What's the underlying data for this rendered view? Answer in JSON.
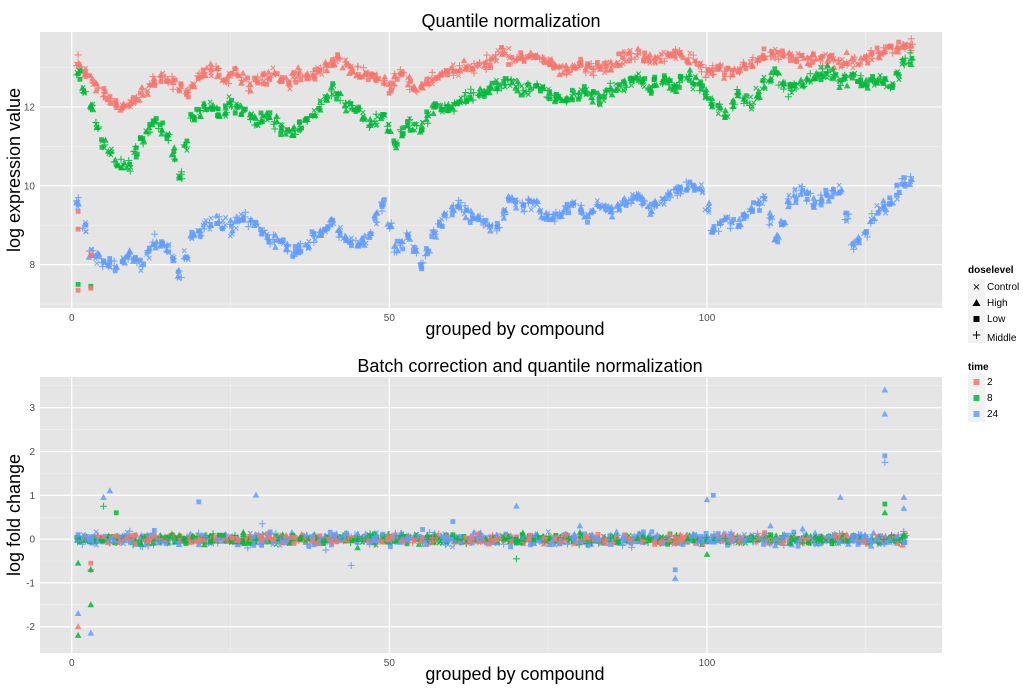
{
  "chart_data": [
    {
      "type": "scatter",
      "title": "Quantile normalization",
      "xlabel": "grouped by compound",
      "ylabel": "log expression value",
      "xlim": [
        -5,
        137
      ],
      "ylim": [
        6.9,
        13.9
      ],
      "xticks": [
        0,
        50,
        100
      ],
      "yticks": [
        8,
        10,
        12
      ],
      "grid": true,
      "series": [
        {
          "name": "2",
          "color": "#F8766D",
          "levels": [
            [
              1,
              13.1
            ],
            [
              3,
              12.65
            ],
            [
              6,
              12.2
            ],
            [
              8,
              12.0
            ],
            [
              10,
              12.2
            ],
            [
              12,
              12.55
            ],
            [
              14,
              12.75
            ],
            [
              16,
              12.6
            ],
            [
              18,
              12.3
            ],
            [
              20,
              12.75
            ],
            [
              22,
              12.95
            ],
            [
              24,
              12.7
            ],
            [
              26,
              12.85
            ],
            [
              28,
              12.55
            ],
            [
              30,
              12.75
            ],
            [
              32,
              12.8
            ],
            [
              34,
              12.6
            ],
            [
              36,
              12.85
            ],
            [
              38,
              12.75
            ],
            [
              40,
              13.05
            ],
            [
              42,
              13.25
            ],
            [
              44,
              12.95
            ],
            [
              46,
              12.85
            ],
            [
              48,
              12.75
            ],
            [
              50,
              12.55
            ],
            [
              52,
              12.85
            ],
            [
              54,
              12.45
            ],
            [
              56,
              12.7
            ],
            [
              58,
              12.8
            ],
            [
              60,
              12.95
            ],
            [
              62,
              12.95
            ],
            [
              64,
              13.05
            ],
            [
              66,
              13.15
            ],
            [
              68,
              13.4
            ],
            [
              70,
              13.2
            ],
            [
              72,
              13.3
            ],
            [
              74,
              13.2
            ],
            [
              76,
              13.05
            ],
            [
              78,
              12.95
            ],
            [
              80,
              13.05
            ],
            [
              82,
              12.95
            ],
            [
              84,
              13.05
            ],
            [
              86,
              13.15
            ],
            [
              88,
              13.35
            ],
            [
              90,
              13.25
            ],
            [
              92,
              13.2
            ],
            [
              94,
              13.35
            ],
            [
              96,
              13.3
            ],
            [
              98,
              13.2
            ],
            [
              100,
              12.9
            ],
            [
              102,
              13.0
            ],
            [
              104,
              12.85
            ],
            [
              106,
              13.05
            ],
            [
              108,
              13.2
            ],
            [
              110,
              13.3
            ],
            [
              112,
              13.35
            ],
            [
              114,
              13.2
            ],
            [
              116,
              13.15
            ],
            [
              118,
              13.2
            ],
            [
              120,
              13.2
            ],
            [
              122,
              13.15
            ],
            [
              124,
              13.1
            ],
            [
              126,
              13.25
            ],
            [
              128,
              13.45
            ],
            [
              131,
              13.55
            ]
          ]
        },
        {
          "name": "8",
          "color": "#00BA38",
          "levels": [
            [
              1,
              12.9
            ],
            [
              3,
              12.0
            ],
            [
              5,
              11.1
            ],
            [
              7,
              10.6
            ],
            [
              9,
              10.5
            ],
            [
              11,
              11.2
            ],
            [
              13,
              11.65
            ],
            [
              15,
              11.3
            ],
            [
              17,
              10.3
            ],
            [
              19,
              11.7
            ],
            [
              21,
              12.05
            ],
            [
              23,
              11.85
            ],
            [
              25,
              12.1
            ],
            [
              27,
              11.9
            ],
            [
              29,
              11.6
            ],
            [
              31,
              11.75
            ],
            [
              33,
              11.5
            ],
            [
              35,
              11.3
            ],
            [
              37,
              11.7
            ],
            [
              39,
              12.0
            ],
            [
              41,
              12.45
            ],
            [
              43,
              12.05
            ],
            [
              45,
              11.95
            ],
            [
              47,
              11.55
            ],
            [
              49,
              11.8
            ],
            [
              51,
              11.1
            ],
            [
              53,
              11.6
            ],
            [
              55,
              11.5
            ],
            [
              57,
              11.95
            ],
            [
              59,
              12.0
            ],
            [
              61,
              12.15
            ],
            [
              63,
              12.25
            ],
            [
              65,
              12.4
            ],
            [
              67,
              12.6
            ],
            [
              69,
              12.65
            ],
            [
              71,
              12.4
            ],
            [
              73,
              12.55
            ],
            [
              75,
              12.35
            ],
            [
              77,
              12.15
            ],
            [
              79,
              12.25
            ],
            [
              81,
              12.4
            ],
            [
              83,
              12.2
            ],
            [
              85,
              12.45
            ],
            [
              87,
              12.55
            ],
            [
              89,
              12.75
            ],
            [
              91,
              12.5
            ],
            [
              93,
              12.65
            ],
            [
              95,
              12.55
            ],
            [
              97,
              12.75
            ],
            [
              99,
              12.5
            ],
            [
              101,
              12.1
            ],
            [
              103,
              11.8
            ],
            [
              105,
              12.3
            ],
            [
              107,
              12.1
            ],
            [
              109,
              12.55
            ],
            [
              111,
              12.8
            ],
            [
              113,
              12.45
            ],
            [
              115,
              12.6
            ],
            [
              117,
              12.8
            ],
            [
              119,
              12.85
            ],
            [
              121,
              12.65
            ],
            [
              123,
              12.75
            ],
            [
              125,
              12.55
            ],
            [
              127,
              12.75
            ],
            [
              129,
              12.5
            ],
            [
              131,
              13.15
            ]
          ]
        },
        {
          "name": "24",
          "color": "#619CFF",
          "levels": [
            [
              1,
              9.6
            ],
            [
              3,
              8.3
            ],
            [
              5,
              8.05
            ],
            [
              7,
              8.0
            ],
            [
              9,
              8.2
            ],
            [
              11,
              8.0
            ],
            [
              13,
              8.6
            ],
            [
              15,
              8.4
            ],
            [
              17,
              7.75
            ],
            [
              19,
              8.7
            ],
            [
              21,
              9.0
            ],
            [
              23,
              9.1
            ],
            [
              25,
              8.9
            ],
            [
              27,
              9.2
            ],
            [
              29,
              9.0
            ],
            [
              31,
              8.7
            ],
            [
              33,
              8.6
            ],
            [
              35,
              8.35
            ],
            [
              37,
              8.55
            ],
            [
              39,
              8.8
            ],
            [
              41,
              9.05
            ],
            [
              43,
              8.7
            ],
            [
              45,
              8.5
            ],
            [
              47,
              8.8
            ],
            [
              49,
              9.5
            ],
            [
              51,
              8.45
            ],
            [
              53,
              8.7
            ],
            [
              55,
              8.0
            ],
            [
              57,
              8.75
            ],
            [
              59,
              9.3
            ],
            [
              61,
              9.5
            ],
            [
              63,
              9.2
            ],
            [
              65,
              9.1
            ],
            [
              67,
              8.95
            ],
            [
              69,
              9.6
            ],
            [
              71,
              9.5
            ],
            [
              73,
              9.55
            ],
            [
              75,
              9.2
            ],
            [
              77,
              9.3
            ],
            [
              79,
              9.6
            ],
            [
              81,
              9.2
            ],
            [
              83,
              9.5
            ],
            [
              85,
              9.4
            ],
            [
              87,
              9.6
            ],
            [
              89,
              9.75
            ],
            [
              91,
              9.45
            ],
            [
              93,
              9.6
            ],
            [
              95,
              9.9
            ],
            [
              97,
              10.0
            ],
            [
              99,
              9.95
            ],
            [
              101,
              8.8
            ],
            [
              103,
              9.2
            ],
            [
              105,
              9.0
            ],
            [
              107,
              9.4
            ],
            [
              109,
              9.65
            ],
            [
              111,
              8.7
            ],
            [
              113,
              9.6
            ],
            [
              115,
              9.9
            ],
            [
              117,
              9.55
            ],
            [
              119,
              9.8
            ],
            [
              121,
              9.9
            ],
            [
              123,
              8.5
            ],
            [
              125,
              8.8
            ],
            [
              127,
              9.4
            ],
            [
              129,
              9.6
            ],
            [
              131,
              10.1
            ]
          ]
        }
      ]
    },
    {
      "type": "scatter",
      "title": "Batch correction and quantile normalization",
      "xlabel": "grouped by compound",
      "ylabel": "log fold change",
      "xlim": [
        -5,
        137
      ],
      "ylim": [
        -2.6,
        3.7
      ],
      "xticks": [
        0,
        50,
        100
      ],
      "yticks": [
        -2,
        -1,
        0,
        1,
        2,
        3
      ],
      "grid": true,
      "series": [
        {
          "name": "2",
          "color": "#F8766D",
          "points": [
            [
              1,
              -2.0
            ],
            [
              3,
              -0.7
            ],
            [
              3,
              -0.55
            ],
            [
              5,
              0.05
            ],
            [
              10,
              -0.1
            ],
            [
              20,
              0.0
            ],
            [
              28,
              0.1
            ],
            [
              35,
              -0.1
            ],
            [
              44,
              0.05
            ],
            [
              55,
              -0.05
            ],
            [
              64,
              0.1
            ],
            [
              72,
              0.0
            ],
            [
              84,
              -0.1
            ],
            [
              95,
              0.05
            ],
            [
              104,
              0.0
            ],
            [
              112,
              -0.1
            ],
            [
              122,
              0.1
            ],
            [
              130,
              -0.1
            ]
          ]
        },
        {
          "name": "8",
          "color": "#00BA38",
          "points": [
            [
              1,
              -2.2
            ],
            [
              1,
              -0.55
            ],
            [
              3,
              -1.5
            ],
            [
              3,
              -0.7
            ],
            [
              5,
              0.75
            ],
            [
              7,
              0.6
            ],
            [
              18,
              -0.1
            ],
            [
              27,
              0.15
            ],
            [
              36,
              0.0
            ],
            [
              45,
              -0.2
            ],
            [
              60,
              0.1
            ],
            [
              70,
              -0.45
            ],
            [
              80,
              0.15
            ],
            [
              90,
              0.05
            ],
            [
              100,
              -0.35
            ],
            [
              110,
              0.1
            ],
            [
              118,
              0.05
            ],
            [
              128,
              0.6
            ],
            [
              128,
              0.8
            ],
            [
              131,
              0.1
            ]
          ]
        },
        {
          "name": "24",
          "color": "#619CFF",
          "points": [
            [
              1,
              -1.7
            ],
            [
              1,
              0.1
            ],
            [
              3,
              -2.15
            ],
            [
              5,
              0.95
            ],
            [
              6,
              1.1
            ],
            [
              13,
              0.2
            ],
            [
              20,
              0.85
            ],
            [
              29,
              1.0
            ],
            [
              30,
              0.35
            ],
            [
              40,
              -0.25
            ],
            [
              44,
              -0.6
            ],
            [
              60,
              0.4
            ],
            [
              70,
              0.75
            ],
            [
              80,
              0.3
            ],
            [
              92,
              0.05
            ],
            [
              95,
              -0.7
            ],
            [
              95,
              -0.9
            ],
            [
              100,
              0.9
            ],
            [
              101,
              1.0
            ],
            [
              110,
              0.3
            ],
            [
              121,
              0.95
            ],
            [
              128,
              3.4
            ],
            [
              128,
              2.85
            ],
            [
              128,
              1.9
            ],
            [
              128,
              1.75
            ],
            [
              131,
              0.95
            ],
            [
              131,
              0.7
            ]
          ]
        }
      ]
    }
  ],
  "legend": {
    "doselevel": {
      "title": "doselevel",
      "items": [
        {
          "label": "Control",
          "shape": "x"
        },
        {
          "label": "High",
          "shape": "triangle"
        },
        {
          "label": "Low",
          "shape": "square"
        },
        {
          "label": "Middle",
          "shape": "plus"
        }
      ]
    },
    "time": {
      "title": "time",
      "items": [
        {
          "label": "2",
          "color": "#F8766D"
        },
        {
          "label": "8",
          "color": "#00BA38"
        },
        {
          "label": "24",
          "color": "#619CFF"
        }
      ]
    }
  },
  "colors": {
    "panel": "#E5E5E5",
    "grid_major": "#FFFFFF",
    "grid_minor": "#F2F2F2"
  }
}
